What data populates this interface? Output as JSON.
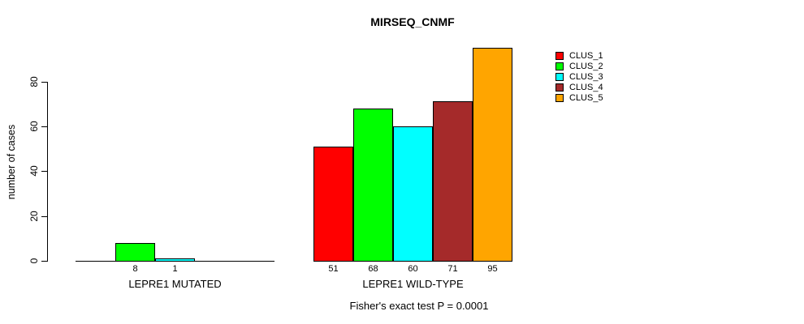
{
  "chart_data": {
    "type": "bar",
    "title": "MIRSEQ_CNMF",
    "ylabel": "number of cases",
    "caption": "Fisher's exact test P = 0.0001",
    "yticks": [
      0,
      20,
      40,
      60,
      80
    ],
    "ylim": [
      0,
      95
    ],
    "grid": false,
    "legend_position": "right",
    "categories": [
      "CLUS_1",
      "CLUS_2",
      "CLUS_3",
      "CLUS_4",
      "CLUS_5"
    ],
    "colors": [
      "#FF0000",
      "#00FF00",
      "#00FFFF",
      "#A52A2A",
      "#FFA500"
    ],
    "legend": [
      {
        "label": "CLUS_1",
        "color": "#FF0000"
      },
      {
        "label": "CLUS_2",
        "color": "#00FF00"
      },
      {
        "label": "CLUS_3",
        "color": "#00FFFF"
      },
      {
        "label": "CLUS_4",
        "color": "#A52A2A"
      },
      {
        "label": "CLUS_5",
        "color": "#FFA500"
      }
    ],
    "groups": [
      {
        "label": "LEPRE1 MUTATED",
        "values": [
          0,
          8,
          1,
          0,
          0
        ],
        "bar_labels": [
          "",
          "8",
          "1",
          "",
          ""
        ]
      },
      {
        "label": "LEPRE1 WILD-TYPE",
        "values": [
          51,
          68,
          60,
          71,
          95
        ],
        "bar_labels": [
          "51",
          "68",
          "60",
          "71",
          "95"
        ]
      }
    ]
  }
}
